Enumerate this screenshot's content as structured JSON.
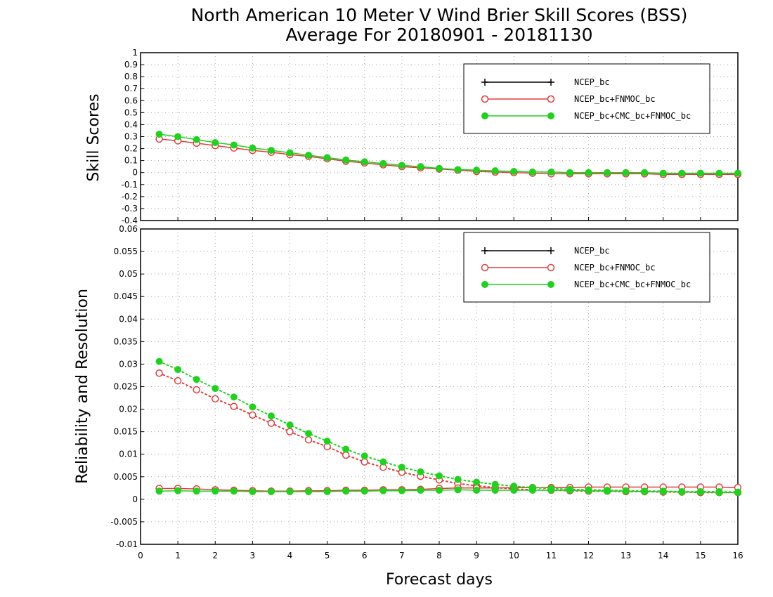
{
  "title_line1": "North American 10 Meter V Wind Brier Skill Scores (BSS)",
  "title_line2": "Average For 20180901 - 20181130",
  "colors": {
    "NCEP_bc": "#000000",
    "NCEP_bc+FNMOC_bc": "#e23c3c",
    "NCEP_bc+CMC_bc+FNMOC_bc": "#1ed21e"
  },
  "chart_data": [
    {
      "type": "line",
      "ylabel": "Skill Scores",
      "xlabel": "",
      "xlim": [
        0,
        16
      ],
      "ylim": [
        -0.4,
        1
      ],
      "yticks": [
        "1",
        "0.9",
        "0.8",
        "0.7",
        "0.6",
        "0.5",
        "0.4",
        "0.3",
        "0.2",
        "0.1",
        "0",
        "-0.1",
        "-0.2",
        "-0.3",
        "-0.4"
      ],
      "ytick_values": [
        1,
        0.9,
        0.8,
        0.7,
        0.6,
        0.5,
        0.4,
        0.3,
        0.2,
        0.1,
        0,
        -0.1,
        -0.2,
        -0.3,
        -0.4
      ],
      "grid": true,
      "legend_position": "top-right",
      "legend": [
        "NCEP_bc",
        "NCEP_bc+FNMOC_bc",
        "NCEP_bc+CMC_bc+FNMOC_bc"
      ],
      "x": [
        0.5,
        1,
        1.5,
        2,
        2.5,
        3,
        3.5,
        4,
        4.5,
        5,
        5.5,
        6,
        6.5,
        7,
        7.5,
        8,
        8.5,
        9,
        9.5,
        10,
        10.5,
        11,
        11.5,
        12,
        12.5,
        13,
        13.5,
        14,
        14.5,
        15,
        15.5,
        16
      ],
      "series": [
        {
          "name": "NCEP_bc+FNMOC_bc",
          "marker": "open-circle",
          "style": "solid",
          "values": [
            0.28,
            0.265,
            0.245,
            0.225,
            0.205,
            0.185,
            0.17,
            0.15,
            0.135,
            0.115,
            0.095,
            0.08,
            0.065,
            0.05,
            0.04,
            0.03,
            0.02,
            0.01,
            0.005,
            0,
            -0.005,
            -0.01,
            -0.01,
            -0.01,
            -0.01,
            -0.01,
            -0.01,
            -0.015,
            -0.015,
            -0.015,
            -0.015,
            -0.015
          ]
        },
        {
          "name": "NCEP_bc+CMC_bc+FNMOC_bc",
          "marker": "filled-circle",
          "style": "solid",
          "values": [
            0.32,
            0.3,
            0.275,
            0.25,
            0.23,
            0.205,
            0.185,
            0.165,
            0.145,
            0.125,
            0.105,
            0.09,
            0.075,
            0.06,
            0.05,
            0.035,
            0.025,
            0.02,
            0.015,
            0.01,
            0.005,
            0.005,
            0,
            0,
            0,
            0,
            0,
            -0.005,
            -0.005,
            -0.005,
            -0.005,
            -0.005
          ]
        }
      ]
    },
    {
      "type": "line",
      "ylabel": "Reliability and Resolution",
      "xlabel": "Forecast days",
      "xlim": [
        0,
        16
      ],
      "ylim": [
        -0.01,
        0.06
      ],
      "yticks": [
        "0.06",
        "0.055",
        "0.05",
        "0.045",
        "0.04",
        "0.035",
        "0.03",
        "0.025",
        "0.02",
        "0.015",
        "0.01",
        "0.005",
        "0",
        "-0.005",
        "-0.01"
      ],
      "ytick_values": [
        0.06,
        0.055,
        0.05,
        0.045,
        0.04,
        0.035,
        0.03,
        0.025,
        0.02,
        0.015,
        0.01,
        0.005,
        0,
        -0.005,
        -0.01
      ],
      "xticks": [
        "0",
        "1",
        "2",
        "3",
        "4",
        "5",
        "6",
        "7",
        "8",
        "9",
        "10",
        "11",
        "12",
        "13",
        "14",
        "15",
        "16"
      ],
      "xtick_values": [
        0,
        1,
        2,
        3,
        4,
        5,
        6,
        7,
        8,
        9,
        10,
        11,
        12,
        13,
        14,
        15,
        16
      ],
      "grid": true,
      "legend_position": "top-right",
      "legend": [
        "NCEP_bc",
        "NCEP_bc+FNMOC_bc",
        "NCEP_bc+CMC_bc+FNMOC_bc"
      ],
      "x": [
        0.5,
        1,
        1.5,
        2,
        2.5,
        3,
        3.5,
        4,
        4.5,
        5,
        5.5,
        6,
        6.5,
        7,
        7.5,
        8,
        8.5,
        9,
        9.5,
        10,
        10.5,
        11,
        11.5,
        12,
        12.5,
        13,
        13.5,
        14,
        14.5,
        15,
        15.5,
        16
      ],
      "series": [
        {
          "name": "NCEP_bc+FNMOC_bc",
          "metric": "resolution",
          "marker": "open-circle",
          "style": "dotted",
          "values": [
            0.028,
            0.0263,
            0.0243,
            0.0223,
            0.0206,
            0.0187,
            0.0169,
            0.015,
            0.0132,
            0.0117,
            0.0098,
            0.0083,
            0.0071,
            0.006,
            0.0051,
            0.0043,
            0.0035,
            0.003,
            0.0026,
            0.0023,
            0.0021,
            0.002,
            0.0019,
            0.0018,
            0.0018,
            0.0017,
            0.0017,
            0.0016,
            0.0016,
            0.0015,
            0.0015,
            0.0015
          ]
        },
        {
          "name": "NCEP_bc+FNMOC_bc",
          "metric": "reliability",
          "marker": "open-circle",
          "style": "solid",
          "values": [
            0.0024,
            0.0024,
            0.0023,
            0.0021,
            0.002,
            0.0019,
            0.0018,
            0.0018,
            0.0019,
            0.0019,
            0.002,
            0.002,
            0.0021,
            0.0021,
            0.0022,
            0.0024,
            0.0025,
            0.0025,
            0.0025,
            0.0026,
            0.0026,
            0.0026,
            0.0026,
            0.0027,
            0.0027,
            0.0027,
            0.0027,
            0.0027,
            0.0027,
            0.0027,
            0.0027,
            0.0026
          ]
        },
        {
          "name": "NCEP_bc+CMC_bc+FNMOC_bc",
          "metric": "resolution",
          "marker": "filled-circle",
          "style": "dotted",
          "values": [
            0.0306,
            0.0288,
            0.0266,
            0.0246,
            0.0227,
            0.0205,
            0.0185,
            0.0165,
            0.0146,
            0.0129,
            0.0111,
            0.0096,
            0.0083,
            0.0071,
            0.0061,
            0.0052,
            0.0044,
            0.0038,
            0.0033,
            0.0029,
            0.0026,
            0.0024,
            0.0022,
            0.0021,
            0.002,
            0.0019,
            0.0018,
            0.0018,
            0.0017,
            0.0017,
            0.0017,
            0.0016
          ]
        },
        {
          "name": "NCEP_bc+CMC_bc+FNMOC_bc",
          "metric": "reliability",
          "marker": "filled-circle",
          "style": "solid",
          "values": [
            0.0018,
            0.0019,
            0.0018,
            0.0018,
            0.0018,
            0.0017,
            0.0017,
            0.0017,
            0.0017,
            0.0017,
            0.0018,
            0.0018,
            0.0019,
            0.0019,
            0.002,
            0.002,
            0.0021,
            0.002,
            0.002,
            0.002,
            0.002,
            0.002,
            0.002,
            0.0019,
            0.0018,
            0.0018,
            0.0017,
            0.0017,
            0.0016,
            0.0016,
            0.0015,
            0.0015
          ]
        }
      ]
    }
  ]
}
